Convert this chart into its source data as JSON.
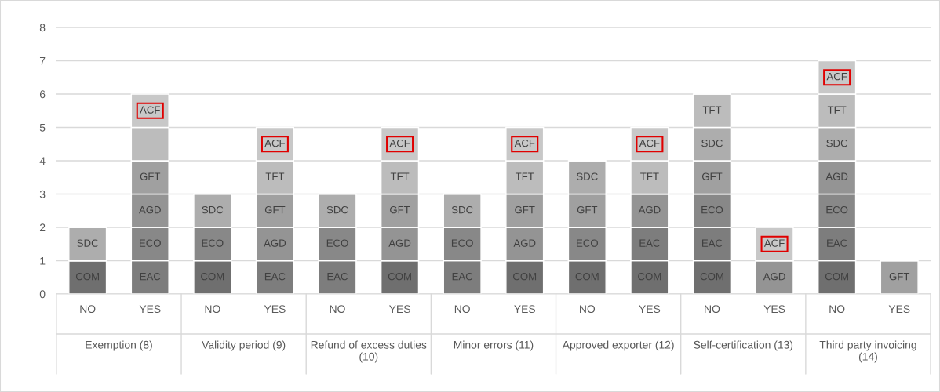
{
  "chart_data": {
    "type": "bar",
    "stacked": true,
    "grid": "y",
    "legend": false,
    "categories": [
      "NO",
      "YES",
      "NO",
      "YES",
      "NO",
      "YES",
      "NO",
      "YES",
      "NO",
      "YES",
      "NO",
      "YES",
      "NO",
      "YES"
    ],
    "annotations": [
      "Exemption (8)",
      "Validity period (9)",
      "Refund of excess duties (10)",
      "Minor errors (11)",
      "Approved exporter (12)",
      "Self-certification (13)",
      "Third party invoicing (14)"
    ],
    "ylim": [
      0,
      8
    ],
    "yticks": [
      0,
      1,
      2,
      3,
      4,
      5,
      6,
      7,
      8
    ],
    "series": [
      {
        "color": "#6f6f6f",
        "values": [
          1,
          null,
          1,
          null,
          null,
          1,
          null,
          1,
          1,
          1,
          1,
          null,
          1,
          null
        ],
        "value_labels": [
          "COM",
          null,
          "COM",
          null,
          null,
          "COM",
          null,
          "COM",
          "COM",
          "COM",
          "COM",
          null,
          "COM",
          null
        ]
      },
      {
        "color": "#7d7d7d",
        "values": [
          null,
          1,
          null,
          1,
          1,
          null,
          1,
          null,
          null,
          1,
          1,
          null,
          1,
          null
        ],
        "value_labels": [
          null,
          "EAC",
          null,
          "EAC",
          "EAC",
          null,
          "EAC",
          null,
          null,
          "EAC",
          "EAC",
          null,
          "EAC",
          null
        ]
      },
      {
        "color": "#888888",
        "values": [
          null,
          1,
          1,
          null,
          1,
          null,
          1,
          null,
          1,
          null,
          1,
          null,
          1,
          null
        ],
        "value_labels": [
          null,
          "ECO",
          "ECO",
          null,
          "ECO",
          null,
          "ECO",
          null,
          "ECO",
          null,
          "ECO",
          null,
          "ECO",
          null
        ]
      },
      {
        "color": "#949494",
        "values": [
          null,
          1,
          null,
          1,
          null,
          1,
          null,
          1,
          null,
          1,
          null,
          1,
          1,
          null
        ],
        "value_labels": [
          null,
          "AGD",
          null,
          "AGD",
          null,
          "AGD",
          null,
          "AGD",
          null,
          "AGD",
          null,
          "AGD",
          "AGD",
          null
        ]
      },
      {
        "color": "#a0a0a0",
        "values": [
          null,
          1,
          null,
          1,
          null,
          1,
          null,
          1,
          1,
          null,
          1,
          null,
          null,
          1
        ],
        "value_labels": [
          null,
          "GFT",
          null,
          "GFT",
          null,
          "GFT",
          null,
          "GFT",
          "GFT",
          null,
          "GFT",
          null,
          null,
          "GFT"
        ]
      },
      {
        "color": "#adadad",
        "values": [
          1,
          null,
          1,
          null,
          1,
          null,
          1,
          null,
          1,
          null,
          1,
          null,
          1,
          null
        ],
        "value_labels": [
          "SDC",
          null,
          "SDC",
          null,
          "SDC",
          null,
          "SDC",
          null,
          "SDC",
          null,
          "SDC",
          null,
          "SDC",
          null
        ]
      },
      {
        "color": "#bcbcbc",
        "values": [
          null,
          1,
          null,
          1,
          null,
          1,
          null,
          1,
          null,
          1,
          1,
          null,
          1,
          null
        ],
        "value_labels": [
          null,
          null,
          null,
          "TFT",
          null,
          "TFT",
          null,
          "TFT",
          null,
          "TFT",
          "TFT",
          null,
          "TFT",
          null
        ]
      },
      {
        "color": "#c8c8c8",
        "values": [
          null,
          1,
          null,
          1,
          null,
          1,
          null,
          1,
          null,
          1,
          null,
          1,
          1,
          null
        ],
        "value_labels": [
          null,
          "ACF",
          null,
          "ACF",
          null,
          "ACF",
          null,
          "ACF",
          null,
          "ACF",
          null,
          "ACF",
          "ACF",
          null
        ]
      }
    ]
  }
}
